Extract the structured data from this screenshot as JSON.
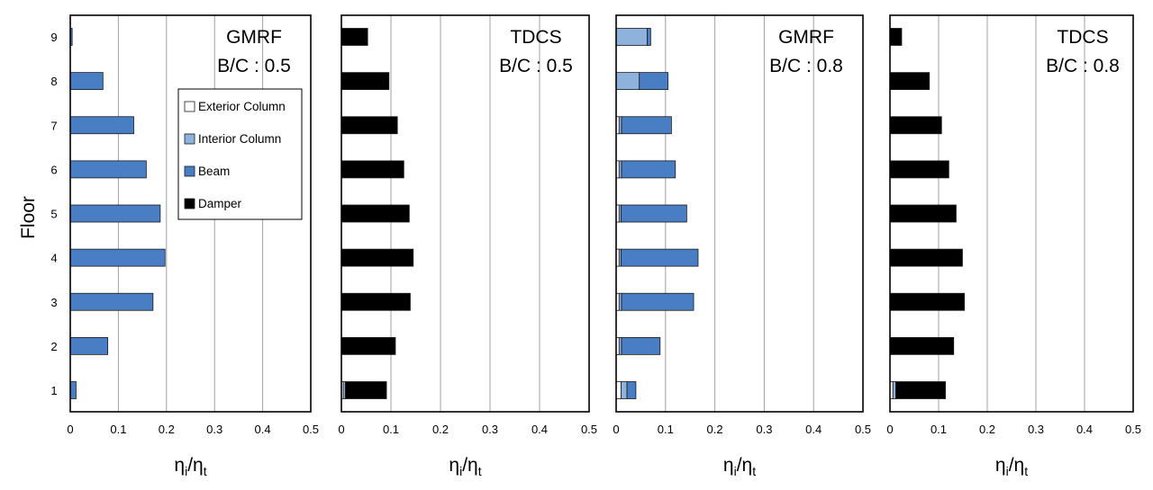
{
  "figure": {
    "ylabel": "Floor",
    "xlabel_main": "η",
    "xlabel_sub_num": "i",
    "xlabel_sep": "/",
    "xlabel_sub_den": "t",
    "legend": [
      {
        "name": "Exterior Column",
        "color": "#ffffff"
      },
      {
        "name": "Interior Column",
        "color": "#8fb2dc"
      },
      {
        "name": "Beam",
        "color": "#4a7ec4"
      },
      {
        "name": "Damper",
        "color": "#000000"
      }
    ],
    "colors": {
      "exterior_column": "#ffffff",
      "interior_column": "#8fb2dc",
      "beam": "#4a7ec4",
      "damper": "#000000",
      "grid": "#a0a0a0"
    }
  },
  "chart_data": [
    {
      "type": "bar",
      "orientation": "horizontal",
      "stacked": true,
      "title": [
        "GMRF",
        "B/C : 0.5"
      ],
      "categories": [
        1,
        2,
        3,
        4,
        5,
        6,
        7,
        8,
        9
      ],
      "xlim": [
        0,
        0.5
      ],
      "xticks": [
        "0",
        "0.1",
        "0.2",
        "0.3",
        "0.4",
        "0.5"
      ],
      "yticks": [
        "1",
        "2",
        "3",
        "4",
        "5",
        "6",
        "7",
        "8",
        "9"
      ],
      "grid": true,
      "legend_position": "upper-middle",
      "series": [
        {
          "name": "Exterior Column",
          "values": [
            0,
            0,
            0,
            0,
            0,
            0,
            0,
            0,
            0
          ]
        },
        {
          "name": "Interior Column",
          "values": [
            0,
            0,
            0,
            0,
            0,
            0,
            0,
            0,
            0
          ]
        },
        {
          "name": "Beam",
          "values": [
            0.012,
            0.078,
            0.172,
            0.197,
            0.187,
            0.158,
            0.132,
            0.068,
            0.004
          ]
        },
        {
          "name": "Damper",
          "values": [
            0,
            0,
            0,
            0,
            0,
            0,
            0,
            0,
            0
          ]
        }
      ]
    },
    {
      "type": "bar",
      "orientation": "horizontal",
      "stacked": true,
      "title": [
        "TDCS",
        "B/C : 0.5"
      ],
      "categories": [
        1,
        2,
        3,
        4,
        5,
        6,
        7,
        8,
        9
      ],
      "xlim": [
        0,
        0.5
      ],
      "xticks": [
        "0",
        "0.1",
        "0.2",
        "0.3",
        "0.4",
        "0.5"
      ],
      "grid": true,
      "series": [
        {
          "name": "Exterior Column",
          "values": [
            0.004,
            0,
            0,
            0,
            0,
            0,
            0,
            0,
            0
          ]
        },
        {
          "name": "Interior Column",
          "values": [
            0.004,
            0,
            0,
            0,
            0,
            0,
            0,
            0,
            0
          ]
        },
        {
          "name": "Beam",
          "values": [
            0,
            0,
            0,
            0,
            0,
            0,
            0,
            0,
            0
          ]
        },
        {
          "name": "Damper",
          "values": [
            0.083,
            0.109,
            0.139,
            0.145,
            0.137,
            0.126,
            0.113,
            0.096,
            0.053
          ]
        }
      ]
    },
    {
      "type": "bar",
      "orientation": "horizontal",
      "stacked": true,
      "title": [
        "GMRF",
        "B/C : 0.8"
      ],
      "categories": [
        1,
        2,
        3,
        4,
        5,
        6,
        7,
        8,
        9
      ],
      "xlim": [
        0,
        0.5
      ],
      "xticks": [
        "0",
        "0.1",
        "0.2",
        "0.3",
        "0.4",
        "0.5"
      ],
      "grid": true,
      "series": [
        {
          "name": "Exterior Column",
          "values": [
            0.01,
            0.006,
            0.006,
            0.006,
            0.006,
            0.006,
            0.006,
            0,
            0
          ]
        },
        {
          "name": "Interior Column",
          "values": [
            0.012,
            0.005,
            0.005,
            0.004,
            0.004,
            0.005,
            0.005,
            0.047,
            0.063
          ]
        },
        {
          "name": "Beam",
          "values": [
            0.018,
            0.078,
            0.146,
            0.156,
            0.133,
            0.109,
            0.101,
            0.058,
            0.007
          ]
        },
        {
          "name": "Damper",
          "values": [
            0,
            0,
            0,
            0,
            0,
            0,
            0,
            0,
            0
          ]
        }
      ]
    },
    {
      "type": "bar",
      "orientation": "horizontal",
      "stacked": true,
      "title": [
        "TDCS",
        "B/C : 0.8"
      ],
      "categories": [
        1,
        2,
        3,
        4,
        5,
        6,
        7,
        8,
        9
      ],
      "xlim": [
        0,
        0.5
      ],
      "xticks": [
        "0",
        "0.1",
        "0.2",
        "0.3",
        "0.4",
        "0.5"
      ],
      "grid": true,
      "series": [
        {
          "name": "Exterior Column",
          "values": [
            0.006,
            0,
            0,
            0,
            0,
            0,
            0,
            0,
            0
          ]
        },
        {
          "name": "Interior Column",
          "values": [
            0.006,
            0,
            0,
            0,
            0,
            0,
            0,
            0,
            0
          ]
        },
        {
          "name": "Beam",
          "values": [
            0,
            0,
            0,
            0,
            0,
            0,
            0,
            0,
            0
          ]
        },
        {
          "name": "Damper",
          "values": [
            0.102,
            0.131,
            0.153,
            0.149,
            0.136,
            0.121,
            0.106,
            0.081,
            0.024
          ]
        }
      ]
    }
  ]
}
